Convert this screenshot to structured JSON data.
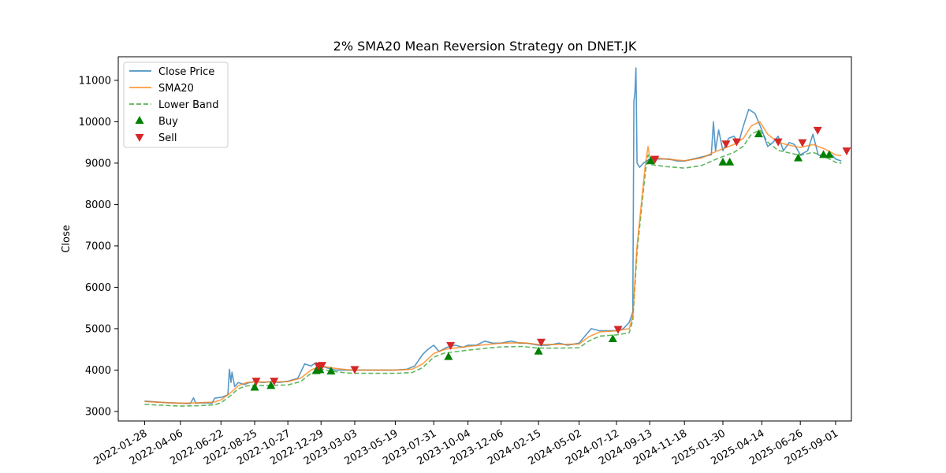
{
  "chart_data": {
    "type": "line",
    "title": "2% SMA20 Mean Reversion Strategy on DNET.JK",
    "xlabel": "",
    "ylabel": "Close",
    "ylim": [
      2770,
      11570
    ],
    "xlim": [
      "2021-12-09",
      "2025-10-01"
    ],
    "yticks": [
      3000,
      4000,
      5000,
      6000,
      7000,
      8000,
      9000,
      10000,
      11000
    ],
    "xticks": [
      "2022-01-28",
      "2022-04-06",
      "2022-06-22",
      "2022-08-25",
      "2022-10-27",
      "2022-12-29",
      "2023-03-03",
      "2023-05-19",
      "2023-07-31",
      "2023-10-04",
      "2023-12-06",
      "2024-02-15",
      "2024-05-02",
      "2024-07-12",
      "2024-09-13",
      "2024-11-18",
      "2025-01-30",
      "2025-04-14",
      "2025-06-26",
      "2025-09-01"
    ],
    "grid": false,
    "legend_position": "top-left",
    "series": [
      {
        "name": "Close Price",
        "color": "#1f77b4",
        "style": "solid",
        "points": [
          [
            "2022-01-28",
            3250
          ],
          [
            "2022-02-20",
            3230
          ],
          [
            "2022-03-15",
            3210
          ],
          [
            "2022-04-06",
            3200
          ],
          [
            "2022-04-25",
            3190
          ],
          [
            "2022-05-01",
            3330
          ],
          [
            "2022-05-05",
            3200
          ],
          [
            "2022-05-20",
            3210
          ],
          [
            "2022-06-05",
            3200
          ],
          [
            "2022-06-10",
            3320
          ],
          [
            "2022-06-22",
            3340
          ],
          [
            "2022-07-05",
            3400
          ],
          [
            "2022-07-08",
            4020
          ],
          [
            "2022-07-11",
            3700
          ],
          [
            "2022-07-13",
            3950
          ],
          [
            "2022-07-18",
            3600
          ],
          [
            "2022-07-25",
            3700
          ],
          [
            "2022-08-05",
            3650
          ],
          [
            "2022-08-15",
            3700
          ],
          [
            "2022-08-25",
            3720
          ],
          [
            "2022-09-10",
            3700
          ],
          [
            "2022-09-25",
            3720
          ],
          [
            "2022-10-10",
            3700
          ],
          [
            "2022-10-27",
            3730
          ],
          [
            "2022-11-15",
            3800
          ],
          [
            "2022-11-28",
            4150
          ],
          [
            "2022-12-10",
            4100
          ],
          [
            "2022-12-20",
            4180
          ],
          [
            "2022-12-29",
            4100
          ],
          [
            "2023-01-10",
            4050
          ],
          [
            "2023-01-25",
            4000
          ],
          [
            "2023-02-10",
            4000
          ],
          [
            "2023-03-03",
            4000
          ],
          [
            "2023-03-25",
            4000
          ],
          [
            "2023-04-20",
            4000
          ],
          [
            "2023-05-19",
            4000
          ],
          [
            "2023-06-10",
            4020
          ],
          [
            "2023-06-25",
            4100
          ],
          [
            "2023-07-10",
            4380
          ],
          [
            "2023-07-20",
            4500
          ],
          [
            "2023-07-31",
            4600
          ],
          [
            "2023-08-10",
            4450
          ],
          [
            "2023-08-25",
            4550
          ],
          [
            "2023-09-10",
            4600
          ],
          [
            "2023-09-25",
            4550
          ],
          [
            "2023-10-04",
            4600
          ],
          [
            "2023-10-20",
            4600
          ],
          [
            "2023-11-05",
            4700
          ],
          [
            "2023-11-20",
            4650
          ],
          [
            "2023-12-06",
            4650
          ],
          [
            "2023-12-25",
            4700
          ],
          [
            "2024-01-10",
            4650
          ],
          [
            "2024-01-25",
            4650
          ],
          [
            "2024-02-15",
            4600
          ],
          [
            "2024-03-05",
            4600
          ],
          [
            "2024-03-25",
            4650
          ],
          [
            "2024-04-10",
            4600
          ],
          [
            "2024-05-02",
            4650
          ],
          [
            "2024-05-15",
            4850
          ],
          [
            "2024-05-25",
            5000
          ],
          [
            "2024-06-10",
            4950
          ],
          [
            "2024-06-25",
            4950
          ],
          [
            "2024-07-12",
            4950
          ],
          [
            "2024-07-25",
            5000
          ],
          [
            "2024-08-05",
            5150
          ],
          [
            "2024-08-12",
            5400
          ],
          [
            "2024-08-14",
            10500
          ],
          [
            "2024-08-16",
            10700
          ],
          [
            "2024-08-18",
            11300
          ],
          [
            "2024-08-20",
            9000
          ],
          [
            "2024-08-25",
            8900
          ],
          [
            "2024-09-01",
            9000
          ],
          [
            "2024-09-13",
            9100
          ],
          [
            "2024-10-01",
            9100
          ],
          [
            "2024-10-20",
            9100
          ],
          [
            "2024-11-05",
            9050
          ],
          [
            "2024-11-18",
            9050
          ],
          [
            "2024-12-05",
            9100
          ],
          [
            "2024-12-20",
            9150
          ],
          [
            "2025-01-08",
            9200
          ],
          [
            "2025-01-12",
            10000
          ],
          [
            "2025-01-16",
            9300
          ],
          [
            "2025-01-22",
            9800
          ],
          [
            "2025-01-30",
            9300
          ],
          [
            "2025-02-10",
            9600
          ],
          [
            "2025-02-20",
            9650
          ],
          [
            "2025-03-01",
            9500
          ],
          [
            "2025-03-10",
            9900
          ],
          [
            "2025-03-20",
            10300
          ],
          [
            "2025-04-01",
            10200
          ],
          [
            "2025-04-14",
            9800
          ],
          [
            "2025-04-25",
            9400
          ],
          [
            "2025-05-05",
            9500
          ],
          [
            "2025-05-15",
            9650
          ],
          [
            "2025-05-25",
            9300
          ],
          [
            "2025-06-05",
            9500
          ],
          [
            "2025-06-15",
            9450
          ],
          [
            "2025-06-26",
            9200
          ],
          [
            "2025-07-10",
            9300
          ],
          [
            "2025-07-20",
            9700
          ],
          [
            "2025-07-30",
            9200
          ],
          [
            "2025-08-10",
            9150
          ],
          [
            "2025-08-25",
            9200
          ],
          [
            "2025-09-01",
            9100
          ],
          [
            "2025-09-12",
            9050
          ]
        ]
      },
      {
        "name": "SMA20",
        "color": "#ff7f0e",
        "style": "solid",
        "points": [
          [
            "2022-01-28",
            3240
          ],
          [
            "2022-03-01",
            3220
          ],
          [
            "2022-04-06",
            3200
          ],
          [
            "2022-05-10",
            3210
          ],
          [
            "2022-06-10",
            3230
          ],
          [
            "2022-06-22",
            3280
          ],
          [
            "2022-07-10",
            3450
          ],
          [
            "2022-07-25",
            3620
          ],
          [
            "2022-08-10",
            3700
          ],
          [
            "2022-08-25",
            3710
          ],
          [
            "2022-09-20",
            3710
          ],
          [
            "2022-10-27",
            3720
          ],
          [
            "2022-11-20",
            3800
          ],
          [
            "2022-12-10",
            4000
          ],
          [
            "2022-12-29",
            4100
          ],
          [
            "2023-01-20",
            4050
          ],
          [
            "2023-02-15",
            4010
          ],
          [
            "2023-03-03",
            4000
          ],
          [
            "2023-04-15",
            4000
          ],
          [
            "2023-05-19",
            4000
          ],
          [
            "2023-06-20",
            4020
          ],
          [
            "2023-07-10",
            4150
          ],
          [
            "2023-07-31",
            4400
          ],
          [
            "2023-08-20",
            4500
          ],
          [
            "2023-09-20",
            4550
          ],
          [
            "2023-10-04",
            4570
          ],
          [
            "2023-11-10",
            4620
          ],
          [
            "2023-12-06",
            4650
          ],
          [
            "2024-01-15",
            4660
          ],
          [
            "2024-02-15",
            4620
          ],
          [
            "2024-03-20",
            4620
          ],
          [
            "2024-05-02",
            4630
          ],
          [
            "2024-05-20",
            4800
          ],
          [
            "2024-06-10",
            4920
          ],
          [
            "2024-07-12",
            4950
          ],
          [
            "2024-08-05",
            5000
          ],
          [
            "2024-08-12",
            5300
          ],
          [
            "2024-08-20",
            7000
          ],
          [
            "2024-09-05",
            9000
          ],
          [
            "2024-09-10",
            9400
          ],
          [
            "2024-09-13",
            9150
          ],
          [
            "2024-10-10",
            9100
          ],
          [
            "2024-11-18",
            9060
          ],
          [
            "2024-12-20",
            9120
          ],
          [
            "2025-01-20",
            9300
          ],
          [
            "2025-01-30",
            9350
          ],
          [
            "2025-02-20",
            9450
          ],
          [
            "2025-03-10",
            9600
          ],
          [
            "2025-03-25",
            9900
          ],
          [
            "2025-04-10",
            10000
          ],
          [
            "2025-04-25",
            9700
          ],
          [
            "2025-05-15",
            9500
          ],
          [
            "2025-06-10",
            9420
          ],
          [
            "2025-06-26",
            9380
          ],
          [
            "2025-07-20",
            9450
          ],
          [
            "2025-08-10",
            9350
          ],
          [
            "2025-08-25",
            9250
          ],
          [
            "2025-09-01",
            9200
          ],
          [
            "2025-09-12",
            9180
          ]
        ]
      },
      {
        "name": "Lower Band",
        "color": "#2ca02c",
        "style": "dashed",
        "points": [
          [
            "2022-01-28",
            3170
          ],
          [
            "2022-03-01",
            3150
          ],
          [
            "2022-04-06",
            3130
          ],
          [
            "2022-05-10",
            3140
          ],
          [
            "2022-06-10",
            3160
          ],
          [
            "2022-06-22",
            3210
          ],
          [
            "2022-07-10",
            3380
          ],
          [
            "2022-07-25",
            3550
          ],
          [
            "2022-08-10",
            3620
          ],
          [
            "2022-08-25",
            3630
          ],
          [
            "2022-09-20",
            3630
          ],
          [
            "2022-10-27",
            3640
          ],
          [
            "2022-11-20",
            3720
          ],
          [
            "2022-12-10",
            3920
          ],
          [
            "2022-12-29",
            4020
          ],
          [
            "2023-01-20",
            3970
          ],
          [
            "2023-02-15",
            3930
          ],
          [
            "2023-03-03",
            3920
          ],
          [
            "2023-04-15",
            3920
          ],
          [
            "2023-05-19",
            3920
          ],
          [
            "2023-06-20",
            3940
          ],
          [
            "2023-07-10",
            4060
          ],
          [
            "2023-07-31",
            4310
          ],
          [
            "2023-08-20",
            4410
          ],
          [
            "2023-09-20",
            4460
          ],
          [
            "2023-10-04",
            4480
          ],
          [
            "2023-11-10",
            4530
          ],
          [
            "2023-12-06",
            4560
          ],
          [
            "2024-01-15",
            4570
          ],
          [
            "2024-02-15",
            4530
          ],
          [
            "2024-03-20",
            4530
          ],
          [
            "2024-05-02",
            4540
          ],
          [
            "2024-05-20",
            4700
          ],
          [
            "2024-06-10",
            4820
          ],
          [
            "2024-07-12",
            4850
          ],
          [
            "2024-08-05",
            4900
          ],
          [
            "2024-08-12",
            5200
          ],
          [
            "2024-08-20",
            6860
          ],
          [
            "2024-09-05",
            8820
          ],
          [
            "2024-09-10",
            9200
          ],
          [
            "2024-09-13",
            8970
          ],
          [
            "2024-10-10",
            8920
          ],
          [
            "2024-11-18",
            8880
          ],
          [
            "2024-12-20",
            8940
          ],
          [
            "2025-01-20",
            9110
          ],
          [
            "2025-01-30",
            9160
          ],
          [
            "2025-02-20",
            9260
          ],
          [
            "2025-03-10",
            9410
          ],
          [
            "2025-03-25",
            9700
          ],
          [
            "2025-04-10",
            9800
          ],
          [
            "2025-04-25",
            9510
          ],
          [
            "2025-05-15",
            9310
          ],
          [
            "2025-06-10",
            9230
          ],
          [
            "2025-06-26",
            9190
          ],
          [
            "2025-07-20",
            9260
          ],
          [
            "2025-08-10",
            9160
          ],
          [
            "2025-08-25",
            9070
          ],
          [
            "2025-09-01",
            9020
          ],
          [
            "2025-09-12",
            9000
          ]
        ]
      }
    ],
    "buy_signals": {
      "name": "Buy",
      "color": "#008000",
      "points": [
        [
          "2022-08-25",
          3580
        ],
        [
          "2022-09-25",
          3620
        ],
        [
          "2022-12-20",
          3980
        ],
        [
          "2022-12-27",
          4000
        ],
        [
          "2023-01-17",
          3970
        ],
        [
          "2023-08-28",
          4320
        ],
        [
          "2024-02-15",
          4450
        ],
        [
          "2024-07-05",
          4750
        ],
        [
          "2024-09-15",
          9050
        ],
        [
          "2025-01-30",
          9020
        ],
        [
          "2025-02-12",
          9020
        ],
        [
          "2025-04-08",
          9700
        ],
        [
          "2025-06-22",
          9120
        ],
        [
          "2025-08-09",
          9200
        ],
        [
          "2025-08-20",
          9200
        ]
      ]
    },
    "sell_signals": {
      "name": "Sell",
      "color": "#d62728",
      "points": [
        [
          "2022-08-28",
          3740
        ],
        [
          "2022-10-01",
          3740
        ],
        [
          "2022-12-24",
          4100
        ],
        [
          "2022-12-31",
          4120
        ],
        [
          "2023-03-03",
          4020
        ],
        [
          "2023-09-01",
          4600
        ],
        [
          "2024-02-20",
          4680
        ],
        [
          "2024-07-15",
          4990
        ],
        [
          "2024-09-23",
          9100
        ],
        [
          "2025-02-05",
          9470
        ],
        [
          "2025-02-25",
          9520
        ],
        [
          "2025-05-15",
          9520
        ],
        [
          "2025-06-30",
          9500
        ],
        [
          "2025-07-29",
          9800
        ],
        [
          "2025-09-22",
          9300
        ]
      ]
    }
  }
}
